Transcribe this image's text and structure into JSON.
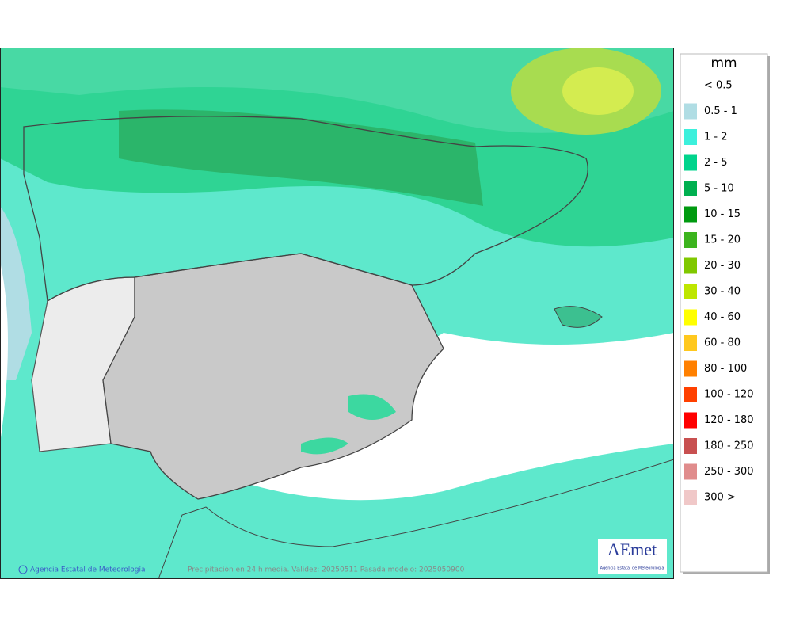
{
  "map": {
    "legend": {
      "title": "mm",
      "items": [
        {
          "label": "< 0.5"
        },
        {
          "label": "0.5 - 1",
          "color": "#b0dde4"
        },
        {
          "label": "1 - 2",
          "color": "#3cf0dc"
        },
        {
          "label": "2 - 5",
          "color": "#00d48c"
        },
        {
          "label": "5 - 10",
          "color": "#00b050"
        },
        {
          "label": "10 - 15",
          "color": "#009a10"
        },
        {
          "label": "15 - 20",
          "color": "#3cb41e"
        },
        {
          "label": "20 - 30",
          "color": "#80c800"
        },
        {
          "label": "30 - 40",
          "color": "#bee600"
        },
        {
          "label": "40 - 60",
          "color": "#ffff00"
        },
        {
          "label": "60 - 80",
          "color": "#ffc81e"
        },
        {
          "label": "80 - 100",
          "color": "#ff8000"
        },
        {
          "label": "100 - 120",
          "color": "#ff4000"
        },
        {
          "label": "120 - 180",
          "color": "#ff0000"
        },
        {
          "label": "180 - 250",
          "color": "#c85050"
        },
        {
          "label": "250 - 300",
          "color": "#e08c8c"
        },
        {
          "label": "300 >",
          "color": "#f0c8c8"
        }
      ]
    },
    "footer": {
      "agency": "Agencia Estatal de Meteorología",
      "caption": "Precipitación en 24 h media. Validez: 20250511 Pasada modelo: 2025050900"
    },
    "logo": {
      "name": "AEmet",
      "subtitle": "Agencia Estatal de Meteorología"
    }
  }
}
